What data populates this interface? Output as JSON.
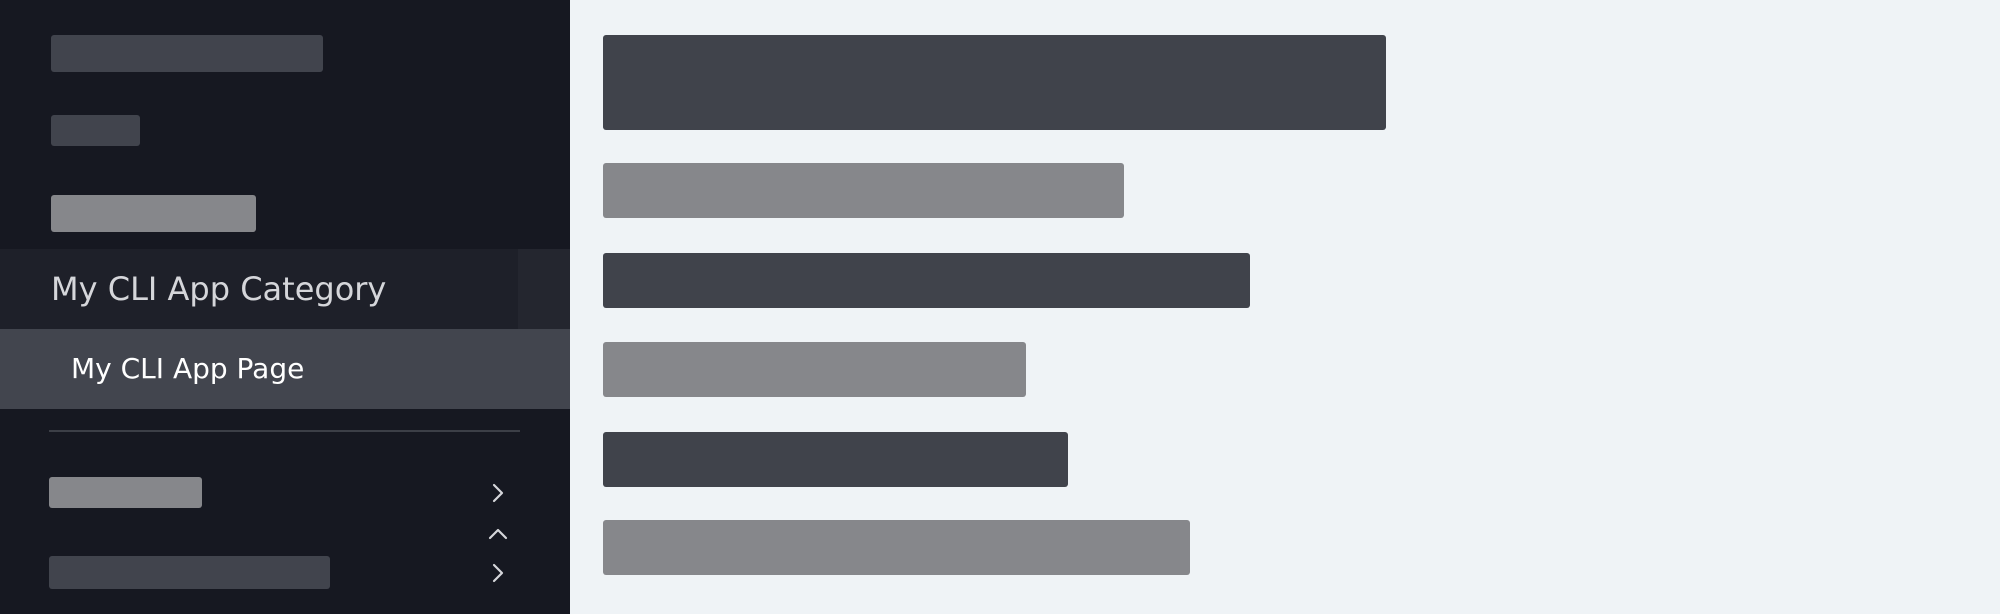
{
  "sidebar": {
    "category": {
      "label": "My CLI App Category",
      "expanded": true,
      "icon": "chevron-up-icon"
    },
    "page": {
      "label": "My CLI App Page",
      "selected": true
    },
    "collapsed_items_icon": "chevron-right-icon"
  },
  "colors": {
    "sidebar_bg": "#161821",
    "selected_row_bg": "#42454e",
    "main_bg": "#eff3f6",
    "placeholder_dark": "#41444d",
    "placeholder_grey": "#86878b"
  }
}
